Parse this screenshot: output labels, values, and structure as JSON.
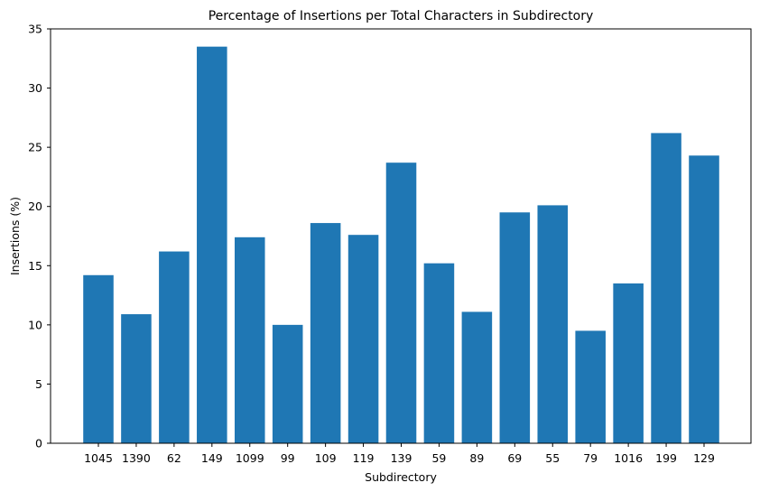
{
  "chart_data": {
    "type": "bar",
    "title": "Percentage of Insertions per Total Characters in Subdirectory",
    "xlabel": "Subdirectory",
    "ylabel": "Insertions (%)",
    "categories": [
      "1045",
      "1390",
      "62",
      "149",
      "1099",
      "99",
      "109",
      "119",
      "139",
      "59",
      "89",
      "69",
      "55",
      "79",
      "1016",
      "199",
      "129"
    ],
    "values": [
      14.2,
      10.9,
      16.2,
      33.5,
      17.4,
      10.0,
      18.6,
      17.6,
      23.7,
      15.2,
      11.1,
      19.5,
      20.1,
      9.5,
      13.5,
      26.2,
      24.3
    ],
    "ylim": [
      0,
      35
    ],
    "yticks": [
      0,
      5,
      10,
      15,
      20,
      25,
      30,
      35
    ],
    "grid": false,
    "legend": "none",
    "bar_color": "#1f77b4"
  }
}
